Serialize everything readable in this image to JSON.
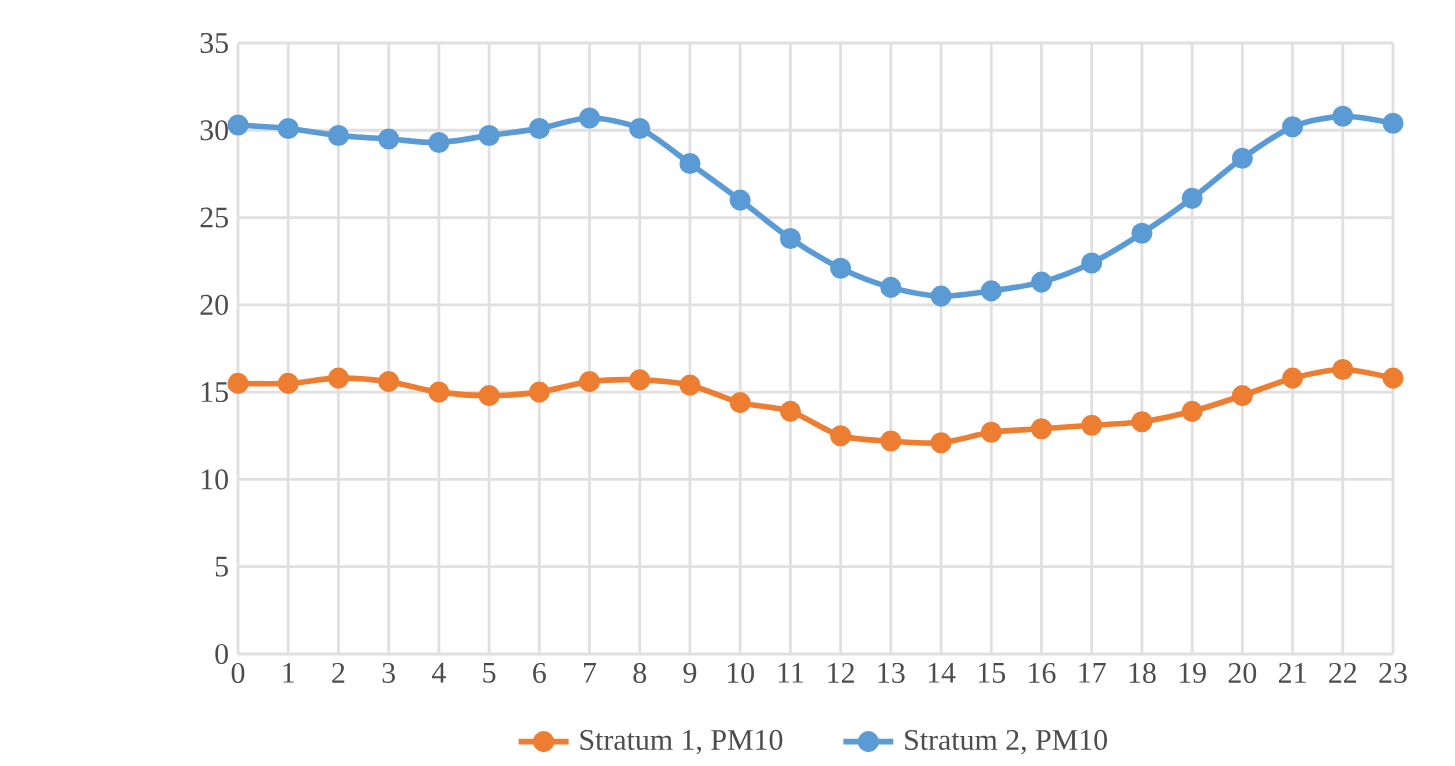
{
  "chart_data": {
    "type": "line",
    "categories": [
      "0",
      "1",
      "2",
      "3",
      "4",
      "5",
      "6",
      "7",
      "8",
      "9",
      "10",
      "11",
      "12",
      "13",
      "14",
      "15",
      "16",
      "17",
      "18",
      "19",
      "20",
      "21",
      "22",
      "23"
    ],
    "series": [
      {
        "name": "Stratum 1, PM10",
        "color": "#ed7d31",
        "values": [
          15.5,
          15.5,
          15.8,
          15.6,
          15.0,
          14.8,
          15.0,
          15.6,
          15.7,
          15.4,
          14.4,
          13.9,
          12.5,
          12.2,
          12.1,
          12.7,
          12.9,
          13.1,
          13.3,
          13.9,
          14.8,
          15.8,
          16.3,
          15.8
        ]
      },
      {
        "name": "Stratum 2, PM10",
        "color": "#5b9bd5",
        "values": [
          30.3,
          30.1,
          29.7,
          29.5,
          29.3,
          29.7,
          30.1,
          30.7,
          30.1,
          28.1,
          26.0,
          23.8,
          22.1,
          21.0,
          20.5,
          20.8,
          21.3,
          22.4,
          24.1,
          26.1,
          28.4,
          30.2,
          30.8,
          30.4
        ]
      }
    ],
    "ylim": [
      0,
      35
    ],
    "yticks": [
      0,
      5,
      10,
      15,
      20,
      25,
      30,
      35
    ],
    "grid": true,
    "legend": "bottom",
    "marker": "circle",
    "line_style": "solid"
  }
}
